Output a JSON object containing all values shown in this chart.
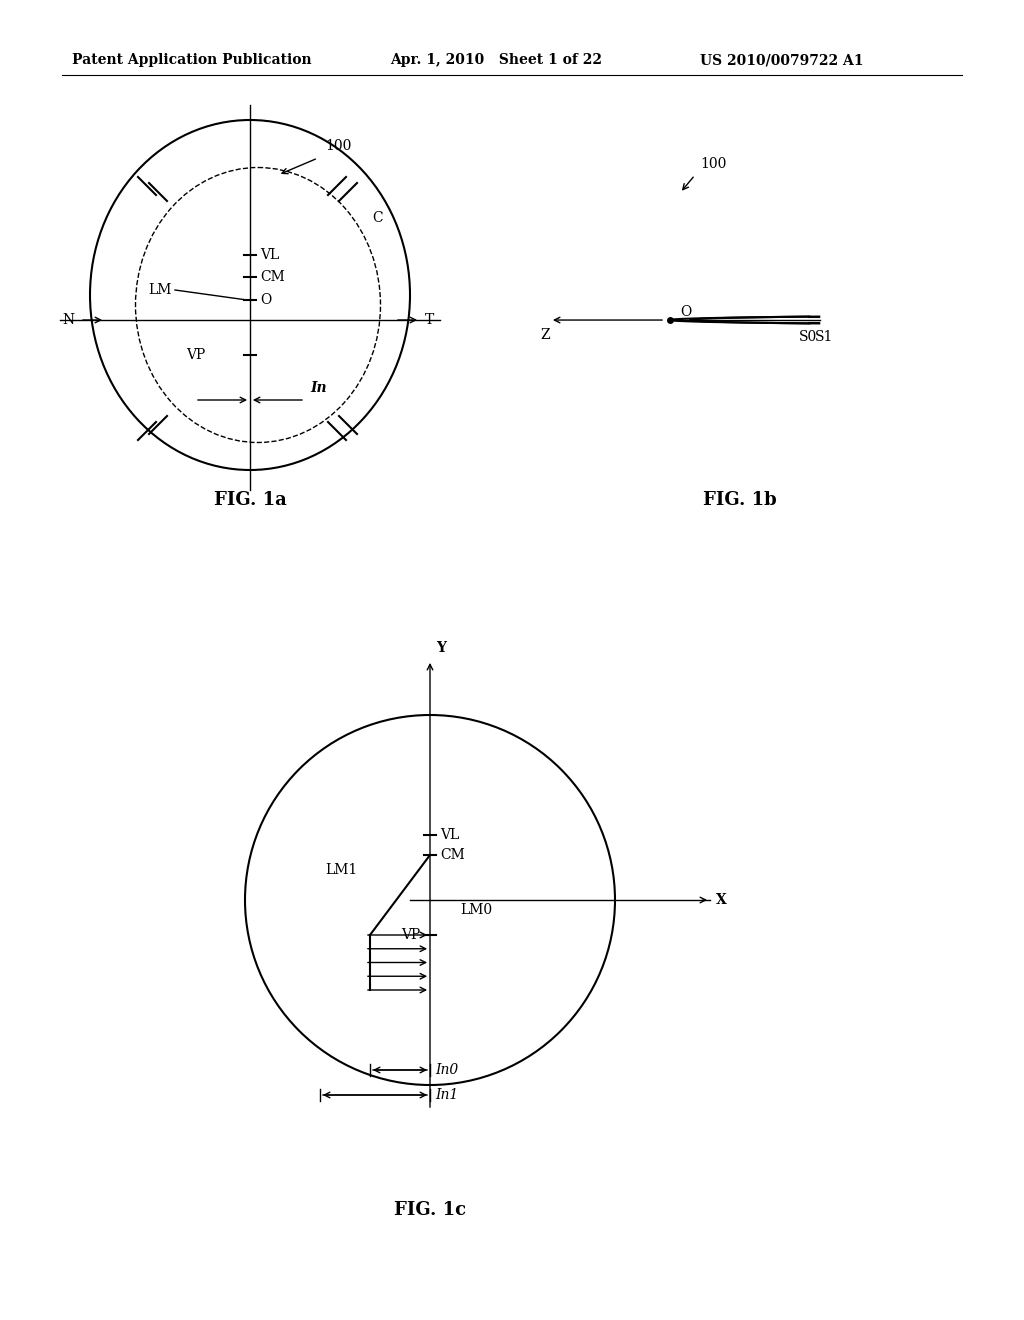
{
  "bg_color": "#ffffff",
  "text_color": "#000000",
  "header_left": "Patent Application Publication",
  "header_center": "Apr. 1, 2010   Sheet 1 of 22",
  "header_right": "US 2010/0079722 A1",
  "fig1a_label": "FIG. 1a",
  "fig1b_label": "FIG. 1b",
  "fig1c_label": "FIG. 1c"
}
